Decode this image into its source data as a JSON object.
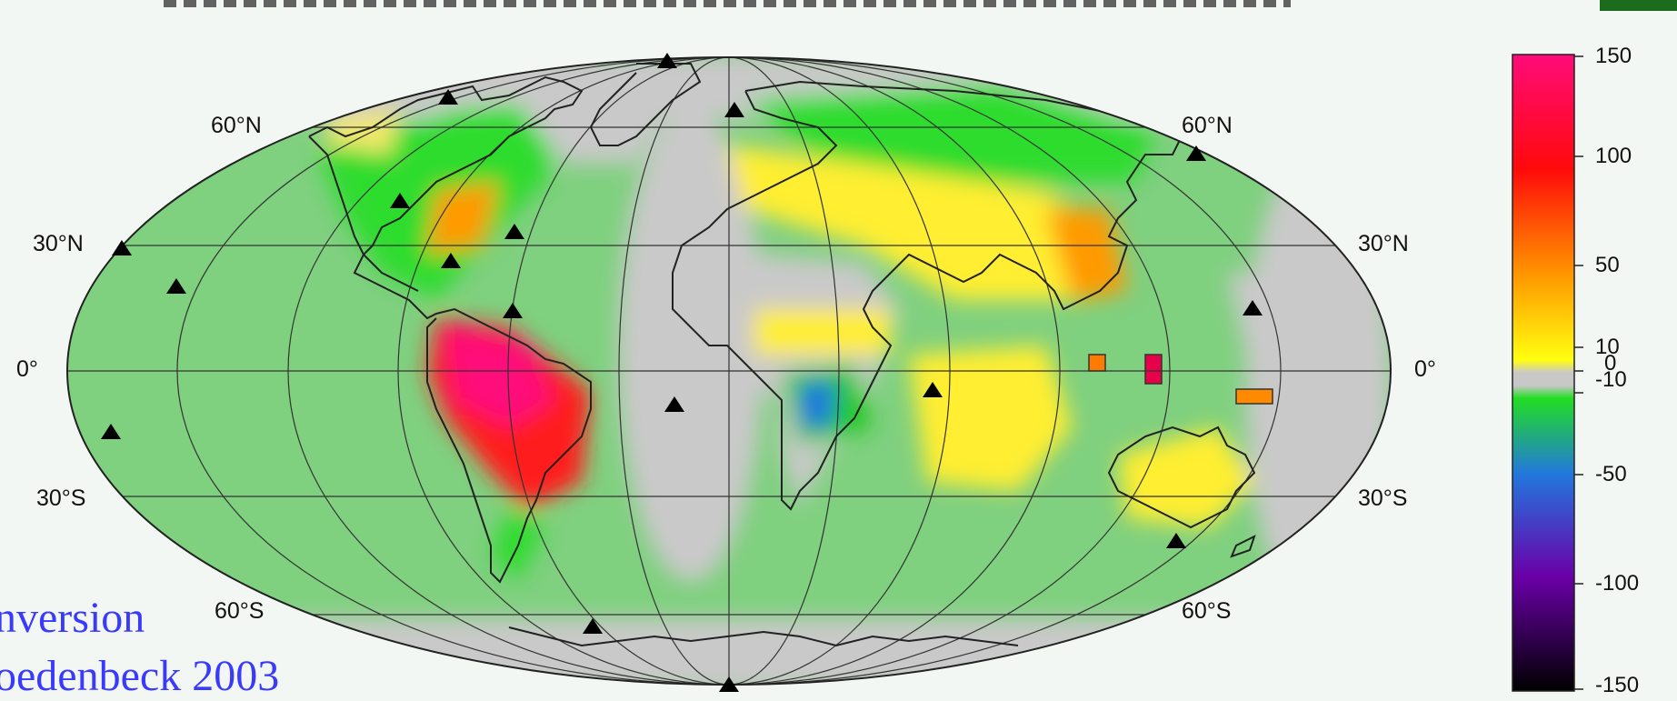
{
  "map": {
    "lat_labels_left": [
      "60°N",
      "30°N",
      "0°",
      "30°S",
      "60°S"
    ],
    "lat_labels_right": [
      "60°N",
      "30°N",
      "0°",
      "30°S",
      "60°S"
    ]
  },
  "colorbar": {
    "ticks": [
      "150",
      "100",
      "50",
      "10",
      "0",
      "-10",
      "-50",
      "-100",
      "-150"
    ],
    "colors": {
      "150": "#ff0b7a",
      "100": "#ff0a0a",
      "50": "#ff9a00",
      "10": "#ffff10",
      "0": "#c8c8c8",
      "-10": "#22dd22",
      "-50": "#2277dd",
      "-100": "#6a00a8",
      "-150": "#000000"
    }
  },
  "caption": {
    "line1": "nversion",
    "line2": "oedenbeck 2003"
  }
}
